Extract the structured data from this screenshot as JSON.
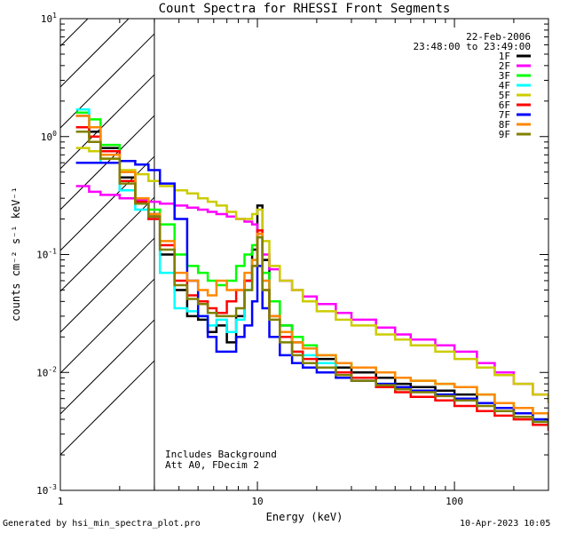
{
  "chart_data": {
    "type": "line",
    "title": "Count Spectra for RHESSI Front Segments",
    "xlabel": "Energy (keV)",
    "ylabel": "counts cm⁻² s⁻¹ keV⁻¹",
    "xscale": "log",
    "yscale": "log",
    "xlim": [
      1,
      300
    ],
    "ylim": [
      0.001,
      10
    ],
    "x_tick_labels": [
      {
        "value": 1,
        "label": "1"
      },
      {
        "value": 10,
        "label": "10"
      },
      {
        "value": 100,
        "label": "100"
      }
    ],
    "y_tick_labels": [
      {
        "value": 0.001,
        "base": "10",
        "exp": "-3"
      },
      {
        "value": 0.01,
        "base": "10",
        "exp": "-2"
      },
      {
        "value": 0.1,
        "base": "10",
        "exp": "-1"
      },
      {
        "value": 1,
        "base": "10",
        "exp": "0"
      },
      {
        "value": 10,
        "base": "10",
        "exp": "1"
      }
    ],
    "hatched_region": {
      "from": 1,
      "to": 3
    },
    "date": "22-Feb-2006",
    "time_range": "23:48:00 to 23:49:00",
    "annotations": [
      "Includes Background",
      "Att A0, FDecim 2"
    ],
    "energy_keV": [
      1.2,
      1.4,
      1.6,
      2.0,
      2.4,
      2.8,
      3.2,
      3.8,
      4.4,
      5.0,
      5.6,
      6.2,
      7.0,
      7.8,
      8.6,
      9.4,
      10.0,
      10.6,
      11.5,
      13,
      15,
      17,
      20,
      25,
      30,
      40,
      50,
      60,
      80,
      100,
      130,
      160,
      200,
      250,
      300
    ],
    "series": [
      {
        "name": "1F",
        "color": "#000000",
        "values": [
          1.5,
          1.1,
          0.8,
          0.45,
          0.28,
          0.22,
          0.1,
          0.05,
          0.03,
          0.028,
          0.022,
          0.025,
          0.018,
          0.03,
          0.06,
          0.11,
          0.26,
          0.09,
          0.04,
          0.025,
          0.018,
          0.016,
          0.013,
          0.011,
          0.01,
          0.009,
          0.008,
          0.0075,
          0.007,
          0.0065,
          0.0055,
          0.005,
          0.0045,
          0.004,
          0.0035
        ]
      },
      {
        "name": "2F",
        "color": "#ff00ff",
        "values": [
          0.38,
          0.34,
          0.32,
          0.3,
          0.29,
          0.28,
          0.27,
          0.26,
          0.25,
          0.24,
          0.23,
          0.22,
          0.21,
          0.2,
          0.19,
          0.18,
          0.15,
          0.1,
          0.075,
          0.06,
          0.05,
          0.044,
          0.038,
          0.032,
          0.028,
          0.024,
          0.021,
          0.019,
          0.017,
          0.015,
          0.012,
          0.01,
          0.008,
          0.0065,
          0.0055
        ]
      },
      {
        "name": "3F",
        "color": "#00ff00",
        "values": [
          1.6,
          1.4,
          0.85,
          0.5,
          0.3,
          0.24,
          0.18,
          0.1,
          0.08,
          0.07,
          0.06,
          0.055,
          0.06,
          0.08,
          0.1,
          0.12,
          0.14,
          0.07,
          0.04,
          0.025,
          0.02,
          0.017,
          0.014,
          0.012,
          0.011,
          0.01,
          0.009,
          0.0085,
          0.008,
          0.0075,
          0.0065,
          0.0055,
          0.005,
          0.0045,
          0.004
        ]
      },
      {
        "name": "4F",
        "color": "#00ffff",
        "values": [
          1.7,
          1.0,
          0.6,
          0.35,
          0.24,
          0.2,
          0.07,
          0.035,
          0.033,
          0.03,
          0.025,
          0.028,
          0.022,
          0.028,
          0.05,
          0.09,
          0.15,
          0.06,
          0.03,
          0.02,
          0.015,
          0.014,
          0.012,
          0.01,
          0.009,
          0.008,
          0.0075,
          0.007,
          0.0065,
          0.006,
          0.0055,
          0.005,
          0.0045,
          0.004,
          0.0035
        ]
      },
      {
        "name": "5F",
        "color": "#cccc00",
        "values": [
          0.8,
          0.75,
          0.65,
          0.52,
          0.48,
          0.42,
          0.38,
          0.35,
          0.33,
          0.3,
          0.28,
          0.26,
          0.23,
          0.2,
          0.2,
          0.22,
          0.24,
          0.13,
          0.08,
          0.06,
          0.05,
          0.04,
          0.033,
          0.028,
          0.025,
          0.021,
          0.019,
          0.017,
          0.015,
          0.013,
          0.011,
          0.0095,
          0.008,
          0.0065,
          0.0055
        ]
      },
      {
        "name": "6F",
        "color": "#ff0000",
        "values": [
          1.2,
          1.0,
          0.75,
          0.42,
          0.28,
          0.2,
          0.12,
          0.06,
          0.045,
          0.04,
          0.035,
          0.032,
          0.04,
          0.05,
          0.06,
          0.08,
          0.16,
          0.05,
          0.03,
          0.02,
          0.015,
          0.013,
          0.011,
          0.01,
          0.009,
          0.0075,
          0.0068,
          0.0062,
          0.0058,
          0.0052,
          0.0047,
          0.0043,
          0.004,
          0.0036,
          0.0032
        ]
      },
      {
        "name": "7F",
        "color": "#0000ff",
        "values": [
          0.6,
          0.6,
          0.6,
          0.62,
          0.58,
          0.52,
          0.4,
          0.2,
          0.06,
          0.03,
          0.02,
          0.015,
          0.015,
          0.02,
          0.025,
          0.04,
          0.08,
          0.035,
          0.02,
          0.014,
          0.012,
          0.011,
          0.01,
          0.009,
          0.0085,
          0.008,
          0.0075,
          0.007,
          0.0065,
          0.006,
          0.0055,
          0.005,
          0.0045,
          0.004,
          0.0035
        ]
      },
      {
        "name": "8F",
        "color": "#ff8800",
        "values": [
          1.5,
          1.2,
          0.7,
          0.5,
          0.3,
          0.22,
          0.13,
          0.07,
          0.06,
          0.05,
          0.045,
          0.06,
          0.05,
          0.05,
          0.07,
          0.09,
          0.15,
          0.06,
          0.03,
          0.022,
          0.018,
          0.016,
          0.014,
          0.012,
          0.011,
          0.01,
          0.009,
          0.0085,
          0.008,
          0.0075,
          0.0065,
          0.0055,
          0.005,
          0.0045,
          0.004
        ]
      },
      {
        "name": "9F",
        "color": "#808000",
        "values": [
          1.1,
          0.9,
          0.65,
          0.4,
          0.27,
          0.21,
          0.11,
          0.055,
          0.042,
          0.038,
          0.032,
          0.03,
          0.03,
          0.035,
          0.05,
          0.08,
          0.14,
          0.05,
          0.028,
          0.018,
          0.014,
          0.012,
          0.011,
          0.0095,
          0.0085,
          0.0078,
          0.0072,
          0.0068,
          0.0063,
          0.0058,
          0.0052,
          0.0047,
          0.0042,
          0.0038,
          0.0034
        ]
      }
    ]
  },
  "footer": {
    "generated_by": "Generated by hsi_min_spectra_plot.pro",
    "timestamp": "10-Apr-2023 10:05"
  }
}
